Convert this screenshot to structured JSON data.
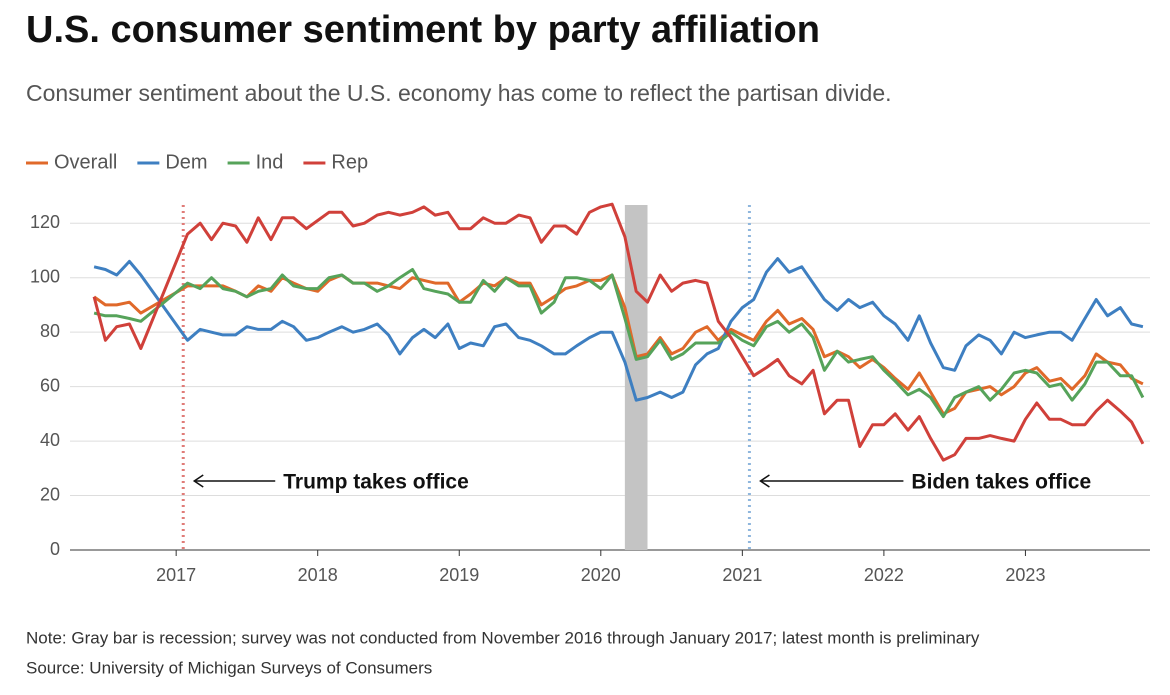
{
  "chart_data": {
    "type": "line",
    "title": "U.S. consumer sentiment by party affiliation",
    "subtitle": "Consumer sentiment about the U.S. economy has come to reflect the partisan divide.",
    "note": "Note: Gray bar is recession; survey was not conducted from November 2016 through January 2017; latest month is preliminary",
    "source": "Source: University of Michigan Surveys of Consumers",
    "x": [
      2016.42,
      2016.5,
      2016.58,
      2016.67,
      2016.75,
      2017.08,
      2017.17,
      2017.25,
      2017.33,
      2017.42,
      2017.5,
      2017.58,
      2017.67,
      2017.75,
      2017.83,
      2017.92,
      2018.0,
      2018.08,
      2018.17,
      2018.25,
      2018.33,
      2018.42,
      2018.5,
      2018.58,
      2018.67,
      2018.75,
      2018.83,
      2018.92,
      2019.0,
      2019.08,
      2019.17,
      2019.25,
      2019.33,
      2019.42,
      2019.5,
      2019.58,
      2019.67,
      2019.75,
      2019.83,
      2019.92,
      2020.0,
      2020.08,
      2020.17,
      2020.25,
      2020.33,
      2020.42,
      2020.5,
      2020.58,
      2020.67,
      2020.75,
      2020.83,
      2020.92,
      2021.0,
      2021.08,
      2021.17,
      2021.25,
      2021.33,
      2021.42,
      2021.5,
      2021.58,
      2021.67,
      2021.75,
      2021.83,
      2021.92,
      2022.0,
      2022.08,
      2022.17,
      2022.25,
      2022.33,
      2022.42,
      2022.5,
      2022.58,
      2022.67,
      2022.75,
      2022.83,
      2022.92,
      2023.0,
      2023.08,
      2023.17,
      2023.25,
      2023.33,
      2023.42,
      2023.5,
      2023.58,
      2023.67,
      2023.75,
      2023.83
    ],
    "series": [
      {
        "name": "Overall",
        "color": "#e0692a",
        "values": [
          93,
          90,
          90,
          91,
          87,
          97,
          97,
          97,
          97,
          95,
          93,
          97,
          95,
          100,
          98,
          96,
          95,
          99,
          101,
          98,
          98,
          98,
          97,
          96,
          100,
          99,
          98,
          98,
          91,
          94,
          98,
          97,
          100,
          98,
          98,
          90,
          93,
          96,
          97,
          99,
          99,
          101,
          89,
          71,
          72,
          78,
          72,
          74,
          80,
          82,
          77,
          81,
          79,
          77,
          84,
          88,
          83,
          85,
          81,
          71,
          73,
          71,
          67,
          70,
          67,
          63,
          59,
          65,
          58,
          50,
          52,
          58,
          59,
          60,
          57,
          60,
          65,
          67,
          62,
          63,
          59,
          64,
          72,
          69,
          68,
          63,
          61
        ]
      },
      {
        "name": "Dem",
        "color": "#3e7fc1",
        "values": [
          104,
          103,
          101,
          106,
          101,
          77,
          81,
          80,
          79,
          79,
          82,
          81,
          81,
          84,
          82,
          77,
          78,
          80,
          82,
          80,
          81,
          83,
          79,
          72,
          78,
          81,
          78,
          83,
          74,
          76,
          75,
          82,
          83,
          78,
          77,
          75,
          72,
          72,
          75,
          78,
          80,
          80,
          69,
          55,
          56,
          58,
          56,
          58,
          68,
          72,
          74,
          84,
          89,
          92,
          102,
          107,
          102,
          104,
          98,
          92,
          88,
          92,
          89,
          91,
          86,
          83,
          77,
          86,
          76,
          67,
          66,
          75,
          79,
          77,
          72,
          80,
          78,
          79,
          80,
          80,
          77,
          85,
          92,
          86,
          89,
          83,
          82
        ]
      },
      {
        "name": "Ind",
        "color": "#56a35a",
        "values": [
          87,
          86,
          86,
          85,
          84,
          98,
          96,
          100,
          96,
          95,
          93,
          95,
          96,
          101,
          97,
          96,
          96,
          100,
          101,
          98,
          98,
          95,
          97,
          100,
          103,
          96,
          95,
          94,
          91,
          91,
          99,
          95,
          100,
          97,
          97,
          87,
          91,
          100,
          100,
          99,
          96,
          101,
          85,
          70,
          71,
          77,
          70,
          72,
          76,
          76,
          76,
          80,
          77,
          75,
          82,
          84,
          80,
          83,
          78,
          66,
          73,
          69,
          70,
          71,
          66,
          62,
          57,
          59,
          56,
          49,
          56,
          58,
          60,
          55,
          59,
          65,
          66,
          65,
          60,
          61,
          55,
          61,
          69,
          69,
          64,
          64,
          56
        ]
      },
      {
        "name": "Rep",
        "color": "#d0403a",
        "values": [
          93,
          77,
          82,
          83,
          74,
          116,
          120,
          114,
          120,
          119,
          113,
          122,
          114,
          122,
          122,
          118,
          121,
          124,
          124,
          119,
          120,
          123,
          124,
          123,
          124,
          126,
          123,
          124,
          118,
          118,
          122,
          120,
          120,
          123,
          122,
          113,
          119,
          119,
          116,
          124,
          126,
          127,
          115,
          95,
          91,
          101,
          95,
          98,
          99,
          98,
          84,
          78,
          71,
          64,
          67,
          70,
          64,
          61,
          66,
          50,
          55,
          55,
          38,
          46,
          46,
          50,
          44,
          49,
          41,
          33,
          35,
          41,
          41,
          42,
          41,
          40,
          48,
          54,
          48,
          48,
          46,
          46,
          51,
          55,
          51,
          47,
          39
        ]
      }
    ],
    "xlim": [
      2016.25,
      2023.88
    ],
    "xticks": [
      2017,
      2018,
      2019,
      2020,
      2021,
      2022,
      2023
    ],
    "ylim": [
      0,
      130
    ],
    "yticks": [
      0,
      20,
      40,
      60,
      80,
      100,
      120
    ],
    "grid": true,
    "legend": "top-left",
    "recession": {
      "start": 2020.17,
      "end": 2020.33,
      "color": "#c4c4c4"
    },
    "events": [
      {
        "label": "Trump takes office",
        "x": 2017.05,
        "color": "#e07c78"
      },
      {
        "label": "Biden takes office",
        "x": 2021.05,
        "color": "#8fb6dd"
      }
    ]
  }
}
